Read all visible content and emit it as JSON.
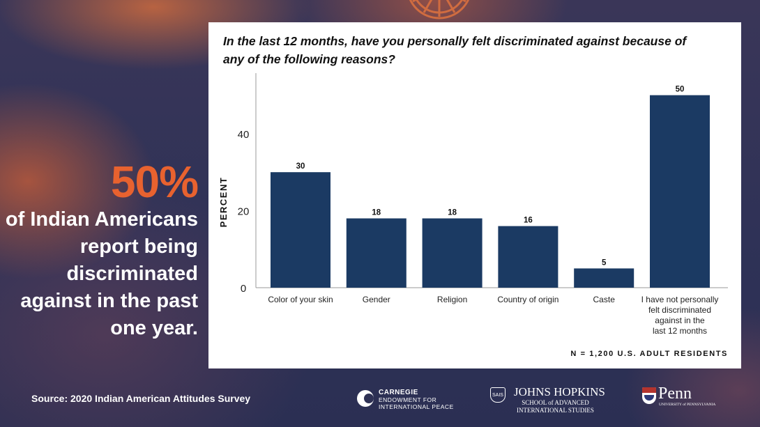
{
  "headline": {
    "stat": "50%",
    "text": "of Indian Americans report being discriminated against in the past one year."
  },
  "source": "Source: 2020 Indian American Attitudes Survey",
  "logos": {
    "carnegie_line1": "CARNEGIE",
    "carnegie_line2": "ENDOWMENT FOR",
    "carnegie_line3": "INTERNATIONAL PEACE",
    "jhu_line1": "JOHNS HOPKINS",
    "jhu_line2": "SCHOOL of ADVANCED",
    "jhu_line3": "INTERNATIONAL STUDIES",
    "jhu_shield": "SAIS",
    "penn_line1": "Penn",
    "penn_line2": "UNIVERSITY of PENNSYLVANIA"
  },
  "colors": {
    "bar": "#1b3a63",
    "accent": "#e8622f",
    "axis": "#9a9a9a"
  },
  "chart_data": {
    "type": "bar",
    "title": "In the last 12 months, have you personally felt discriminated against because of any of the following reasons?",
    "ylabel": "PERCENT",
    "xlabel": "",
    "ylim": [
      0,
      55
    ],
    "yticks": [
      0,
      20,
      40
    ],
    "categories": [
      [
        "Color of your skin"
      ],
      [
        "Gender"
      ],
      [
        "Religion"
      ],
      [
        "Country of origin"
      ],
      [
        "Caste"
      ],
      [
        "I have not personally",
        "felt discriminated",
        "against in the",
        "last 12 months"
      ]
    ],
    "values": [
      30,
      18,
      18,
      16,
      5,
      50
    ],
    "footnote": "N = 1,200 U.S. ADULT RESIDENTS",
    "grid": false,
    "legend": "none"
  }
}
